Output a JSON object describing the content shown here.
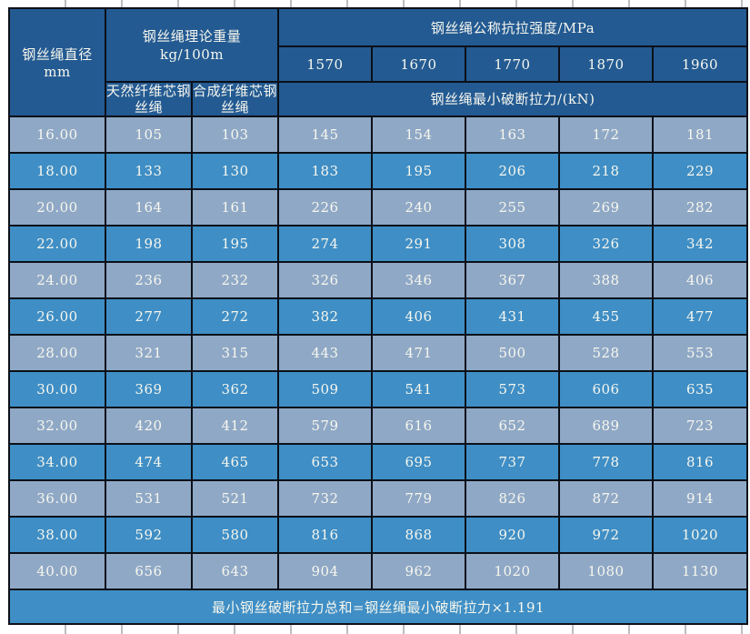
{
  "colors": {
    "header_bg": "#235A92",
    "row_light": "#8FA8C6",
    "row_medium": "#3F8EC5",
    "footer_bg": "#3F8EC5",
    "border_color": "#0C1018",
    "text_color": "#F7F7EE",
    "gridline_color": "#BDBDBD",
    "page_bg": "#FFFFFF"
  },
  "table": {
    "header": {
      "diameter_label": "钢丝绳直径mm",
      "weight_label": "钢丝绳理论重量",
      "weight_unit": "kg/100m",
      "strength_label": "钢丝绳公称抗拉强度/MPa",
      "strength_grades": [
        "1570",
        "1670",
        "1770",
        "1870",
        "1960"
      ],
      "natural_core_label": "天然纤维芯钢丝绳",
      "synthetic_core_label": "合成纤维芯钢丝绳",
      "breaking_force_label": "钢丝绳最小破断拉力/(kN)"
    },
    "rows": [
      {
        "diameter": "16.00",
        "natural_core_weight": "105",
        "synthetic_core_weight": "103",
        "breaking_forces": [
          "145",
          "154",
          "163",
          "172",
          "181"
        ]
      },
      {
        "diameter": "18.00",
        "natural_core_weight": "133",
        "synthetic_core_weight": "130",
        "breaking_forces": [
          "183",
          "195",
          "206",
          "218",
          "229"
        ]
      },
      {
        "diameter": "20.00",
        "natural_core_weight": "164",
        "synthetic_core_weight": "161",
        "breaking_forces": [
          "226",
          "240",
          "255",
          "269",
          "282"
        ]
      },
      {
        "diameter": "22.00",
        "natural_core_weight": "198",
        "synthetic_core_weight": "195",
        "breaking_forces": [
          "274",
          "291",
          "308",
          "326",
          "342"
        ]
      },
      {
        "diameter": "24.00",
        "natural_core_weight": "236",
        "synthetic_core_weight": "232",
        "breaking_forces": [
          "326",
          "346",
          "367",
          "388",
          "406"
        ]
      },
      {
        "diameter": "26.00",
        "natural_core_weight": "277",
        "synthetic_core_weight": "272",
        "breaking_forces": [
          "382",
          "406",
          "431",
          "455",
          "477"
        ]
      },
      {
        "diameter": "28.00",
        "natural_core_weight": "321",
        "synthetic_core_weight": "315",
        "breaking_forces": [
          "443",
          "471",
          "500",
          "528",
          "553"
        ]
      },
      {
        "diameter": "30.00",
        "natural_core_weight": "369",
        "synthetic_core_weight": "362",
        "breaking_forces": [
          "509",
          "541",
          "573",
          "606",
          "635"
        ]
      },
      {
        "diameter": "32.00",
        "natural_core_weight": "420",
        "synthetic_core_weight": "412",
        "breaking_forces": [
          "579",
          "616",
          "652",
          "689",
          "723"
        ]
      },
      {
        "diameter": "34.00",
        "natural_core_weight": "474",
        "synthetic_core_weight": "465",
        "breaking_forces": [
          "653",
          "695",
          "737",
          "778",
          "816"
        ]
      },
      {
        "diameter": "36.00",
        "natural_core_weight": "531",
        "synthetic_core_weight": "521",
        "breaking_forces": [
          "732",
          "779",
          "826",
          "872",
          "914"
        ]
      },
      {
        "diameter": "38.00",
        "natural_core_weight": "592",
        "synthetic_core_weight": "580",
        "breaking_forces": [
          "816",
          "868",
          "920",
          "972",
          "1020"
        ]
      },
      {
        "diameter": "40.00",
        "natural_core_weight": "656",
        "synthetic_core_weight": "643",
        "breaking_forces": [
          "904",
          "962",
          "1020",
          "1080",
          "1130"
        ]
      }
    ],
    "footer_note": "最小钢丝破断拉力总和=钢丝绳最小破断拉力×1.191"
  }
}
